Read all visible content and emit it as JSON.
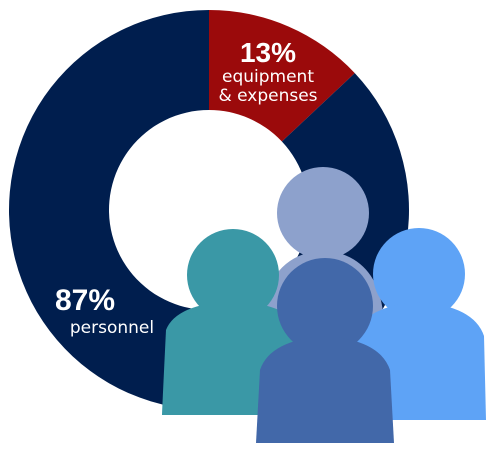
{
  "chart_data": {
    "type": "pie",
    "donut": true,
    "categories": [
      "equipment & expenses",
      "personnel"
    ],
    "values": [
      13,
      87
    ],
    "slice_labels": [
      {
        "value_text": "13%",
        "lines": [
          "equipment",
          "& expenses"
        ]
      },
      {
        "value_text": "87%",
        "lines": [
          "personnel"
        ]
      }
    ],
    "colors": [
      "#9b0a0b",
      "#001e4e"
    ]
  },
  "figures": {
    "icon": "people-group-icon",
    "colors": [
      "#8da1cc",
      "#3a98a6",
      "#5ea3f6",
      "#4268a9"
    ]
  }
}
